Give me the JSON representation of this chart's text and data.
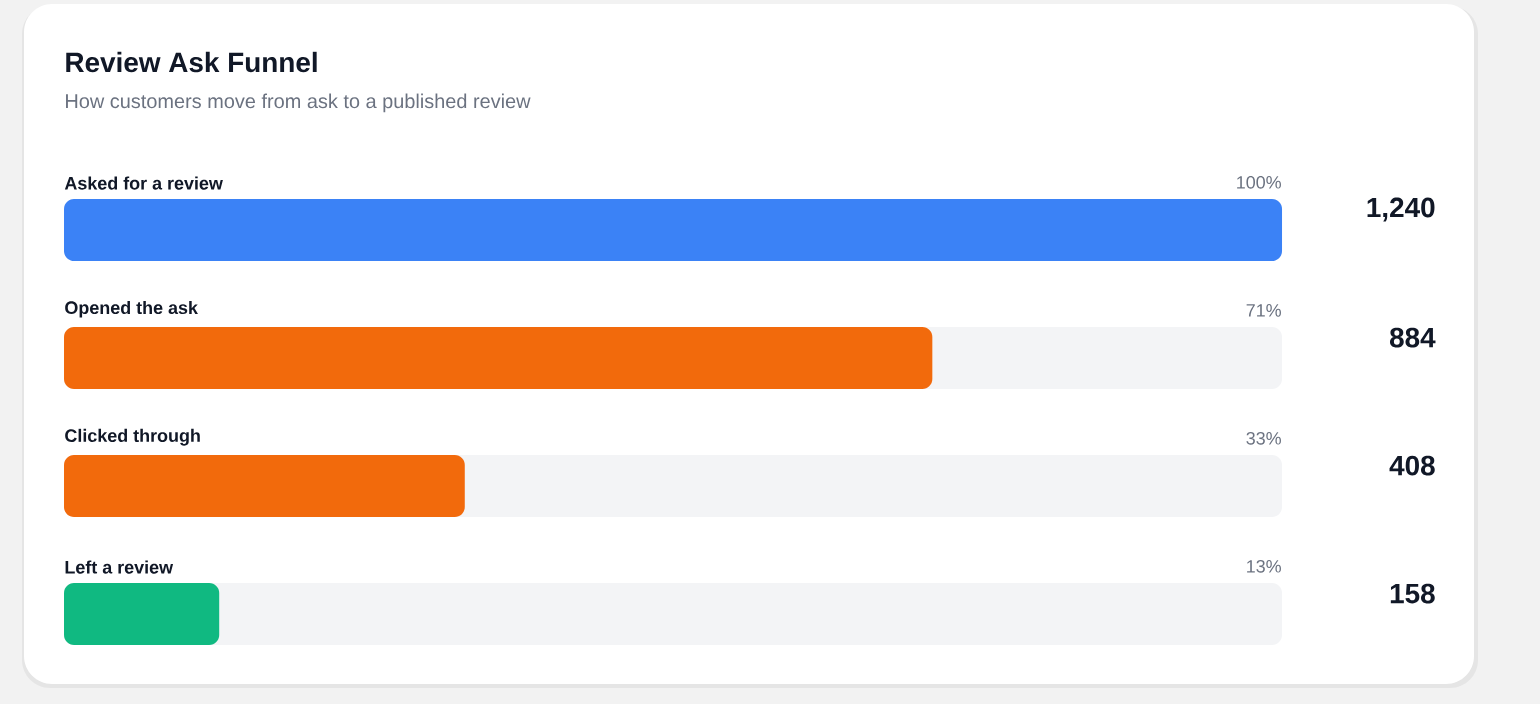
{
  "chart_data": {
    "type": "bar",
    "orientation": "horizontal",
    "title": "Review Ask Funnel",
    "subtitle": "How customers move from ask to a published review",
    "categories": [
      "Asked for a review",
      "Opened the ask",
      "Clicked through",
      "Left a review"
    ],
    "values": [
      1240,
      884,
      408,
      158
    ],
    "colors": [
      "#3b82f6",
      "#f26a0c",
      "#f26a0c",
      "#10b981"
    ],
    "value_labels": [
      "1,240",
      "884",
      "408",
      "158"
    ],
    "annotations": [
      "100%",
      "71%",
      "33%",
      "13%"
    ],
    "xlim": [
      0,
      1240
    ],
    "tick_labels": "y"
  }
}
